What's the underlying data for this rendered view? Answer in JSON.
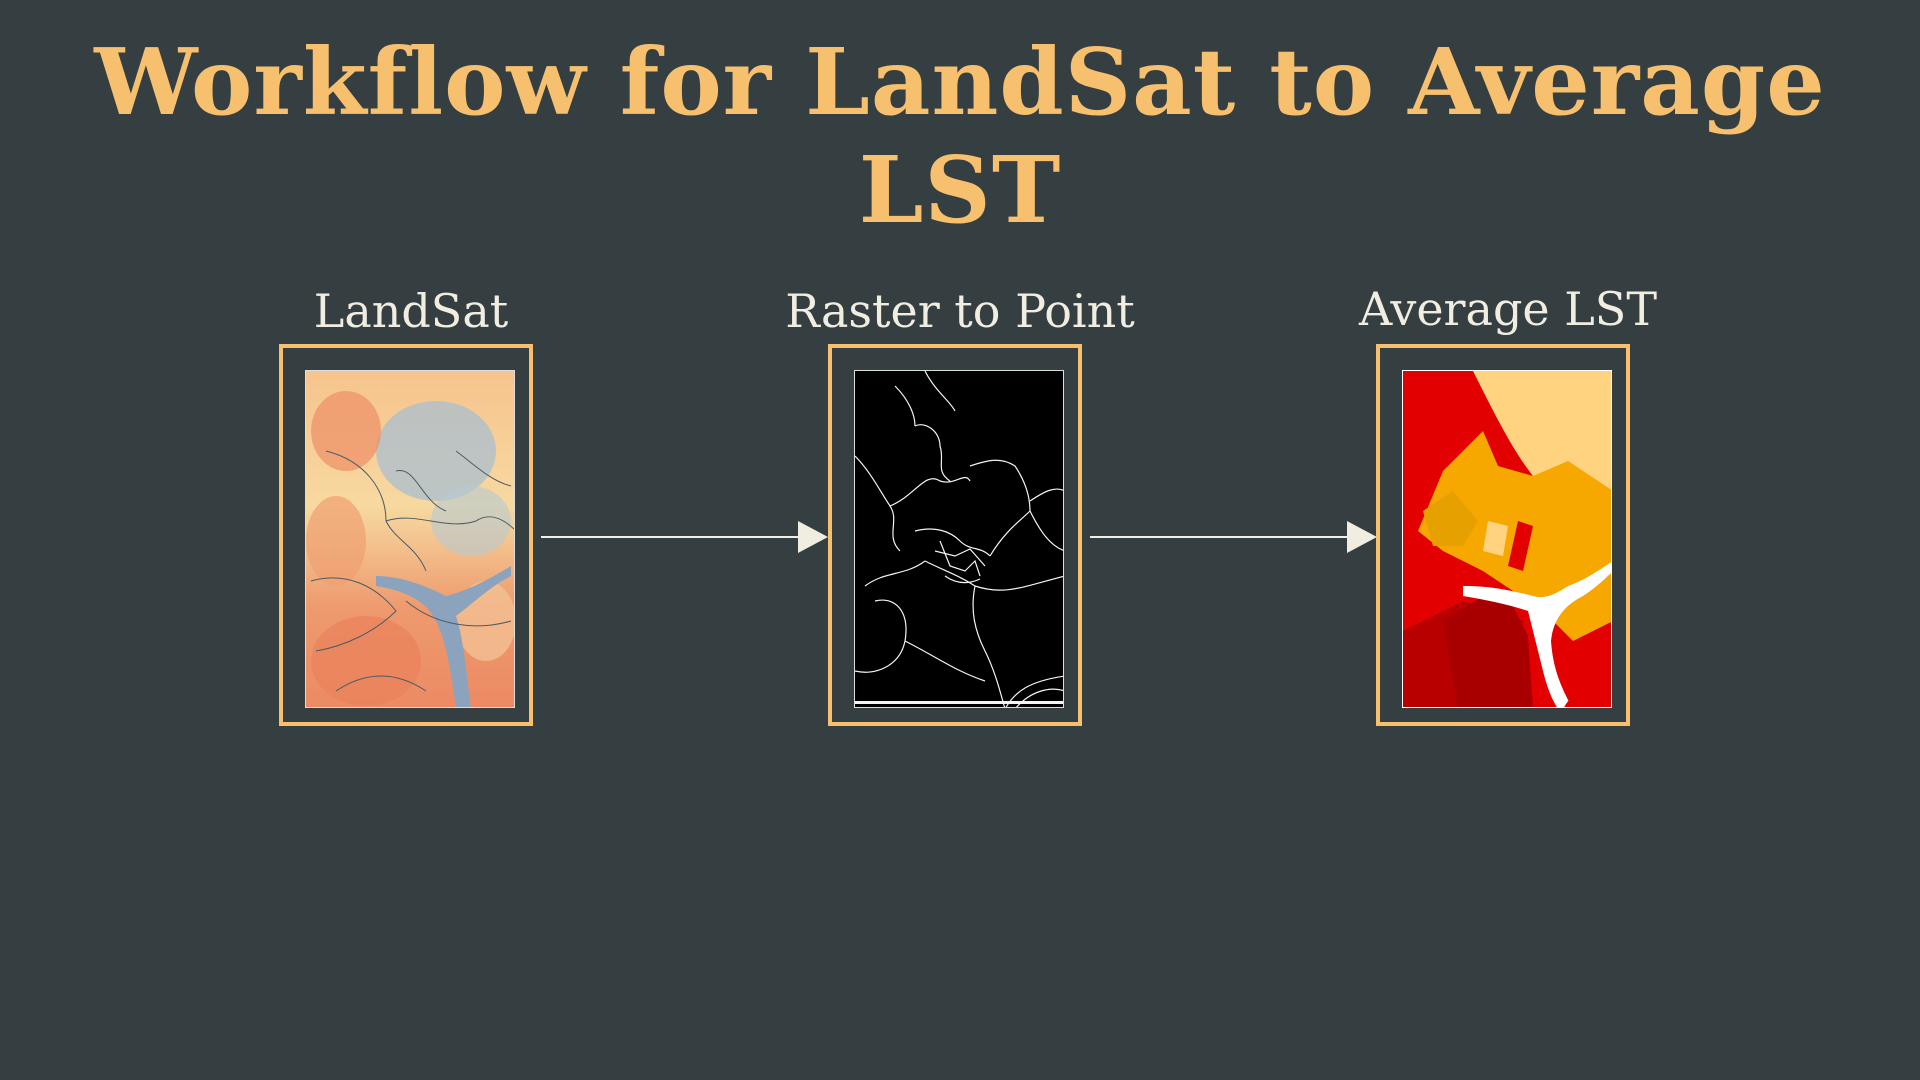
{
  "title": "Workflow for LandSat to Average LST",
  "steps": [
    {
      "label": "LandSat",
      "thumbnail": "landsat-lst-raster-map"
    },
    {
      "label": "Raster to Point",
      "thumbnail": "boundary-outline-map"
    },
    {
      "label": "Average LST",
      "thumbnail": "average-lst-choropleth-map"
    }
  ],
  "colors": {
    "background": "#353f42",
    "title": "#f7c06e",
    "label": "#f1ede1",
    "frame": "#f7c06e",
    "arrow": "#f1ede1"
  }
}
